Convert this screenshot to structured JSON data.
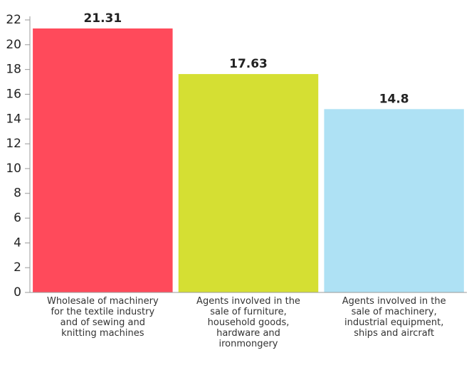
{
  "chart_data": {
    "type": "bar",
    "categories": [
      "Wholesale of machinery for the textile industry and of sewing and knitting machines",
      "Agents involved in the sale of furniture, household goods, hardware and ironmongery",
      "Agents involved in the sale of machinery, industrial equipment, ships and aircraft"
    ],
    "values": [
      21.31,
      17.63,
      14.8
    ],
    "colors": [
      "#ff4a5b",
      "#d5df33",
      "#aee1f4"
    ],
    "ylim": [
      0,
      22
    ],
    "yticks": [
      0,
      2,
      4,
      6,
      8,
      10,
      12,
      14,
      16,
      18,
      20,
      22
    ]
  }
}
